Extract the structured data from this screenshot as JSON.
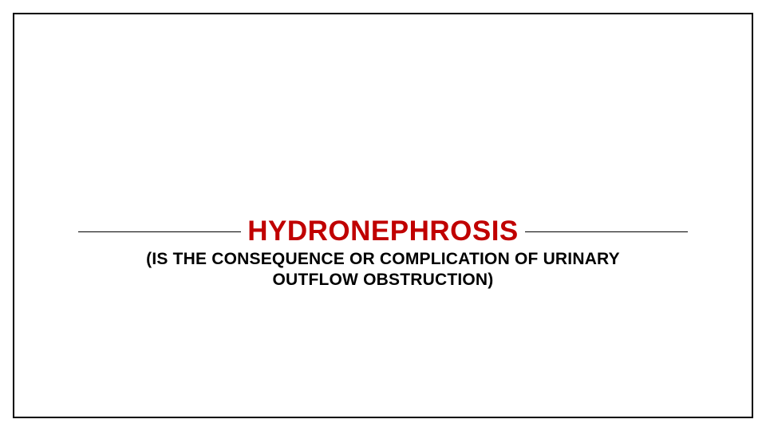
{
  "slide": {
    "title": "HYDRONEPHROSIS",
    "subtitle": "(IS THE CONSEQUENCE OR COMPLICATION OF URINARY OUTFLOW OBSTRUCTION)",
    "title_color": "#c00000",
    "subtitle_color": "#000000",
    "background_color": "#ffffff",
    "frame_border_color": "#000000",
    "divider_color": "#000000",
    "title_fontsize": 35,
    "subtitle_fontsize": 21,
    "title_fontweight": 700,
    "subtitle_fontweight": 700
  }
}
